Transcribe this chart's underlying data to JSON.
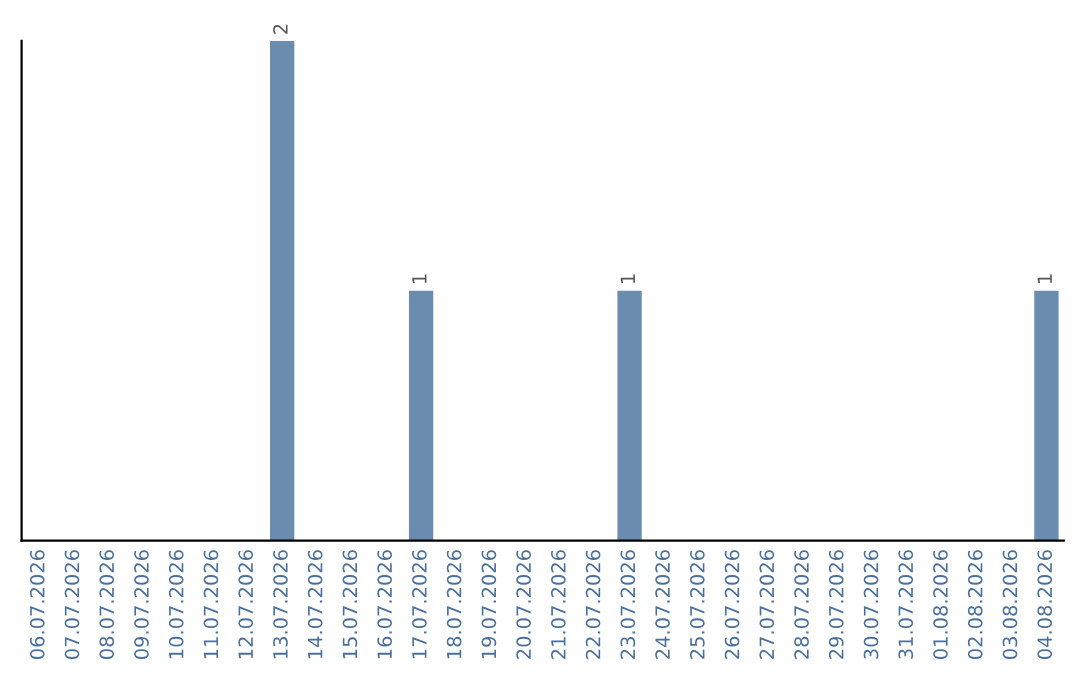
{
  "chart_data": {
    "type": "bar",
    "categories": [
      "06.07.2026",
      "07.07.2026",
      "08.07.2026",
      "09.07.2026",
      "10.07.2026",
      "11.07.2026",
      "12.07.2026",
      "13.07.2026",
      "14.07.2026",
      "15.07.2026",
      "16.07.2026",
      "17.07.2026",
      "18.07.2026",
      "19.07.2026",
      "20.07.2026",
      "21.07.2026",
      "22.07.2026",
      "23.07.2026",
      "24.07.2026",
      "25.07.2026",
      "26.07.2026",
      "27.07.2026",
      "28.07.2026",
      "29.07.2026",
      "30.07.2026",
      "31.07.2026",
      "01.08.2026",
      "02.08.2026",
      "03.08.2026",
      "04.08.2026"
    ],
    "values": [
      0,
      0,
      0,
      0,
      0,
      0,
      0,
      2,
      0,
      0,
      0,
      1,
      0,
      0,
      0,
      0,
      0,
      1,
      0,
      0,
      0,
      0,
      0,
      0,
      0,
      0,
      0,
      0,
      0,
      1
    ],
    "value_labels": [
      null,
      null,
      null,
      null,
      null,
      null,
      null,
      "2",
      null,
      null,
      null,
      "1",
      null,
      null,
      null,
      null,
      null,
      "1",
      null,
      null,
      null,
      null,
      null,
      null,
      null,
      null,
      null,
      null,
      null,
      "1"
    ],
    "color": "#6a8caf",
    "tick_labels": "x",
    "grid": false,
    "legend": false
  }
}
